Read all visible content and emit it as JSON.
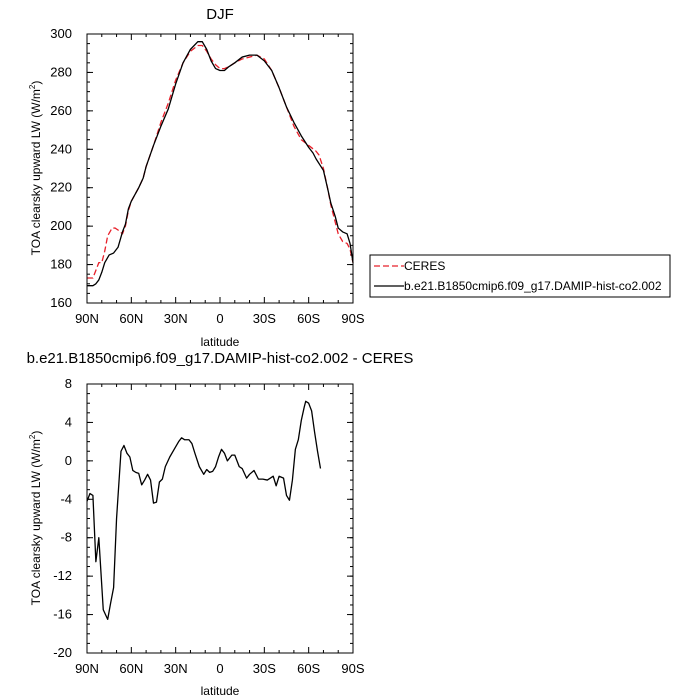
{
  "chart_data": [
    {
      "type": "line",
      "title": "DJF",
      "xlabel": "latitude",
      "ylabel": "TOA clearsky upward LW (W/m",
      "ylabel_sup": "2",
      "ylabel_suffix": ")",
      "x_ticks": [
        {
          "value": 90,
          "label": "90N"
        },
        {
          "value": 60,
          "label": "60N"
        },
        {
          "value": 30,
          "label": "30N"
        },
        {
          "value": 0,
          "label": "0"
        },
        {
          "value": -30,
          "label": "30S"
        },
        {
          "value": -60,
          "label": "60S"
        },
        {
          "value": -90,
          "label": "90S"
        }
      ],
      "xlim": [
        90,
        -90
      ],
      "ylim": [
        160,
        300
      ],
      "y_ticks": [
        160,
        180,
        200,
        220,
        240,
        260,
        280,
        300
      ],
      "legend": "right",
      "series": [
        {
          "name": "CERES",
          "color": "#e8202a",
          "style": "dashed",
          "points": [
            [
              90,
              173
            ],
            [
              86,
              173
            ],
            [
              84,
              177
            ],
            [
              82,
              181
            ],
            [
              80,
              181
            ],
            [
              78,
              187
            ],
            [
              76,
              195
            ],
            [
              73,
              199
            ],
            [
              71,
              199
            ],
            [
              69,
              198
            ],
            [
              66,
              196
            ],
            [
              64,
              200
            ],
            [
              62,
              208
            ],
            [
              60,
              213
            ],
            [
              55,
              220
            ],
            [
              52,
              225
            ],
            [
              50,
              231
            ],
            [
              45,
              242
            ],
            [
              40,
              254
            ],
            [
              35,
              264
            ],
            [
              30,
              276
            ],
            [
              25,
              285
            ],
            [
              20,
              291
            ],
            [
              15,
              294
            ],
            [
              12,
              294
            ],
            [
              9,
              291
            ],
            [
              6,
              287
            ],
            [
              3,
              284
            ],
            [
              0,
              282
            ],
            [
              -3,
              282
            ],
            [
              -6,
              283
            ],
            [
              -10,
              285
            ],
            [
              -15,
              287
            ],
            [
              -20,
              288
            ],
            [
              -25,
              289
            ],
            [
              -30,
              287
            ],
            [
              -35,
              281
            ],
            [
              -40,
              272
            ],
            [
              -45,
              262
            ],
            [
              -50,
              252
            ],
            [
              -55,
              245
            ],
            [
              -60,
              242
            ],
            [
              -65,
              239
            ],
            [
              -67,
              237
            ],
            [
              -70,
              230
            ],
            [
              -73,
              219
            ],
            [
              -75,
              211
            ],
            [
              -78,
              202
            ],
            [
              -80,
              196
            ],
            [
              -83,
              192
            ],
            [
              -86,
              191
            ],
            [
              -88,
              188
            ],
            [
              -90,
              181
            ]
          ]
        },
        {
          "name": "b.e21.B1850cmip6.f09_g17.DAMIP-hist-co2.002",
          "color": "#000000",
          "style": "solid",
          "points": [
            [
              90,
              169
            ],
            [
              86,
              169
            ],
            [
              84,
              170
            ],
            [
              82,
              172
            ],
            [
              80,
              176
            ],
            [
              78,
              181
            ],
            [
              75,
              185
            ],
            [
              72,
              186
            ],
            [
              69,
              189
            ],
            [
              66,
              197
            ],
            [
              64,
              201
            ],
            [
              62,
              209
            ],
            [
              60,
              213
            ],
            [
              55,
              220
            ],
            [
              52,
              225
            ],
            [
              50,
              231
            ],
            [
              45,
              242
            ],
            [
              40,
              252
            ],
            [
              35,
              261
            ],
            [
              30,
              274
            ],
            [
              25,
              285
            ],
            [
              20,
              292
            ],
            [
              15,
              296
            ],
            [
              12,
              296
            ],
            [
              9,
              292
            ],
            [
              6,
              286
            ],
            [
              3,
              282
            ],
            [
              0,
              281
            ],
            [
              -3,
              281
            ],
            [
              -6,
              283
            ],
            [
              -10,
              285
            ],
            [
              -15,
              288
            ],
            [
              -20,
              289
            ],
            [
              -25,
              289
            ],
            [
              -30,
              286
            ],
            [
              -35,
              281
            ],
            [
              -40,
              272
            ],
            [
              -45,
              262
            ],
            [
              -50,
              254
            ],
            [
              -55,
              247
            ],
            [
              -60,
              241
            ],
            [
              -63,
              238
            ],
            [
              -65,
              235
            ],
            [
              -70,
              229
            ],
            [
              -73,
              219
            ],
            [
              -75,
              212
            ],
            [
              -78,
              205
            ],
            [
              -80,
              199
            ],
            [
              -83,
              197
            ],
            [
              -86,
              196
            ],
            [
              -88,
              191
            ],
            [
              -90,
              181
            ]
          ]
        }
      ]
    },
    {
      "type": "line",
      "title": "b.e21.B1850cmip6.f09_g17.DAMIP-hist-co2.002 - CERES",
      "xlabel": "latitude",
      "ylabel": "TOA clearsky upward LW (W/m",
      "ylabel_sup": "2",
      "ylabel_suffix": ")",
      "x_ticks": [
        {
          "value": 90,
          "label": "90N"
        },
        {
          "value": 60,
          "label": "60N"
        },
        {
          "value": 30,
          "label": "30N"
        },
        {
          "value": 0,
          "label": "0"
        },
        {
          "value": -30,
          "label": "30S"
        },
        {
          "value": -60,
          "label": "60S"
        },
        {
          "value": -90,
          "label": "90S"
        }
      ],
      "xlim": [
        90,
        -90
      ],
      "ylim": [
        -20,
        8
      ],
      "y_ticks": [
        -20,
        -16,
        -12,
        -8,
        -4,
        0,
        4,
        8
      ],
      "series": [
        {
          "name": "",
          "color": "#000000",
          "style": "solid",
          "points": [
            [
              90,
              -4.2
            ],
            [
              88,
              -3.4
            ],
            [
              86,
              -3.6
            ],
            [
              84,
              -10.5
            ],
            [
              82,
              -8.0
            ],
            [
              79,
              -15.5
            ],
            [
              76,
              -16.5
            ],
            [
              74,
              -14.8
            ],
            [
              72,
              -13.2
            ],
            [
              70,
              -6.0
            ],
            [
              67,
              1.0
            ],
            [
              65,
              1.6
            ],
            [
              63,
              0.8
            ],
            [
              61,
              0.4
            ],
            [
              59,
              -1.0
            ],
            [
              57,
              -1.2
            ],
            [
              55,
              -1.3
            ],
            [
              53,
              -2.5
            ],
            [
              51,
              -2.0
            ],
            [
              49,
              -1.4
            ],
            [
              47,
              -2.0
            ],
            [
              45,
              -4.4
            ],
            [
              43,
              -4.3
            ],
            [
              41,
              -2.2
            ],
            [
              39,
              -1.9
            ],
            [
              37,
              -0.6
            ],
            [
              34,
              0.4
            ],
            [
              31,
              1.2
            ],
            [
              28,
              2.0
            ],
            [
              26,
              2.4
            ],
            [
              24,
              2.2
            ],
            [
              21,
              2.2
            ],
            [
              19,
              1.8
            ],
            [
              17,
              0.8
            ],
            [
              14,
              -0.6
            ],
            [
              11,
              -1.4
            ],
            [
              9,
              -0.9
            ],
            [
              7,
              -1.2
            ],
            [
              5,
              -1.1
            ],
            [
              3,
              -0.6
            ],
            [
              1,
              0.4
            ],
            [
              -1,
              1.2
            ],
            [
              -3,
              0.8
            ],
            [
              -5,
              0.0
            ],
            [
              -8,
              0.6
            ],
            [
              -10,
              0.6
            ],
            [
              -13,
              -0.6
            ],
            [
              -15,
              -0.8
            ],
            [
              -18,
              -1.8
            ],
            [
              -20,
              -1.4
            ],
            [
              -23,
              -1.0
            ],
            [
              -26,
              -1.9
            ],
            [
              -29,
              -1.9
            ],
            [
              -32,
              -2.0
            ],
            [
              -34,
              -1.8
            ],
            [
              -36,
              -1.6
            ],
            [
              -38,
              -2.6
            ],
            [
              -40,
              -1.6
            ],
            [
              -43,
              -1.8
            ],
            [
              -45,
              -3.6
            ],
            [
              -47,
              -4.1
            ],
            [
              -49,
              -2.0
            ],
            [
              -51,
              1.2
            ],
            [
              -53,
              2.2
            ],
            [
              -55,
              4.2
            ],
            [
              -57,
              5.6
            ],
            [
              -58,
              6.2
            ],
            [
              -60,
              6.0
            ],
            [
              -62,
              5.2
            ],
            [
              -64,
              3.0
            ],
            [
              -66,
              1.0
            ],
            [
              -68,
              -0.8
            ]
          ]
        }
      ]
    }
  ]
}
